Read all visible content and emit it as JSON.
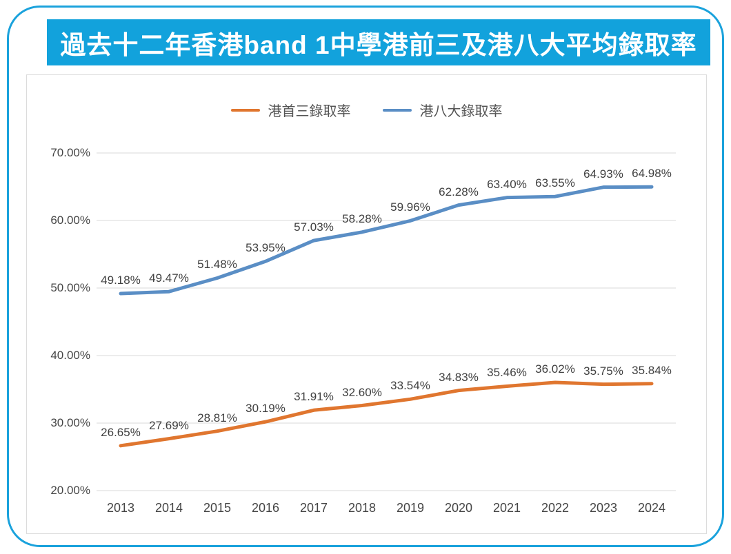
{
  "title": "過去十二年香港band 1中學港前三及港八大平均錄取率",
  "colors": {
    "banner_bg": "#12a2dc",
    "frame_border": "#1aa2dc",
    "grid": "#d9d9d9",
    "chart_border": "#dcdcdc",
    "axis_text": "#454545",
    "label_text": "#404040",
    "legend_text": "#555555"
  },
  "chart_data": {
    "type": "line",
    "title": "過去十二年香港band 1中學港前三及港八大平均錄取率",
    "categories": [
      "2013",
      "2014",
      "2015",
      "2016",
      "2017",
      "2018",
      "2019",
      "2020",
      "2021",
      "2022",
      "2023",
      "2024"
    ],
    "series": [
      {
        "name": "港首三錄取率",
        "color": "#e0762f",
        "values": [
          26.65,
          27.69,
          28.81,
          30.19,
          31.91,
          32.6,
          33.54,
          34.83,
          35.46,
          36.02,
          35.75,
          35.84
        ],
        "labels": [
          "26.65%",
          "27.69%",
          "28.81%",
          "30.19%",
          "31.91%",
          "32.60%",
          "33.54%",
          "34.83%",
          "35.46%",
          "36.02%",
          "35.75%",
          "35.84%"
        ]
      },
      {
        "name": "港八大錄取率",
        "color": "#5a8ec5",
        "values": [
          49.18,
          49.47,
          51.48,
          53.95,
          57.03,
          58.28,
          59.96,
          62.28,
          63.4,
          63.55,
          64.93,
          64.98
        ],
        "labels": [
          "49.18%",
          "49.47%",
          "51.48%",
          "53.95%",
          "57.03%",
          "58.28%",
          "59.96%",
          "62.28%",
          "63.40%",
          "63.55%",
          "64.93%",
          "64.98%"
        ]
      }
    ],
    "ylim": [
      20,
      70
    ],
    "yticks": [
      {
        "value": 20,
        "label": "20.00%"
      },
      {
        "value": 30,
        "label": "30.00%"
      },
      {
        "value": 40,
        "label": "40.00%"
      },
      {
        "value": 50,
        "label": "50.00%"
      },
      {
        "value": 60,
        "label": "60.00%"
      },
      {
        "value": 70,
        "label": "70.00%"
      }
    ],
    "grid": true,
    "legend_position": "top",
    "xlabel": "",
    "ylabel": ""
  }
}
